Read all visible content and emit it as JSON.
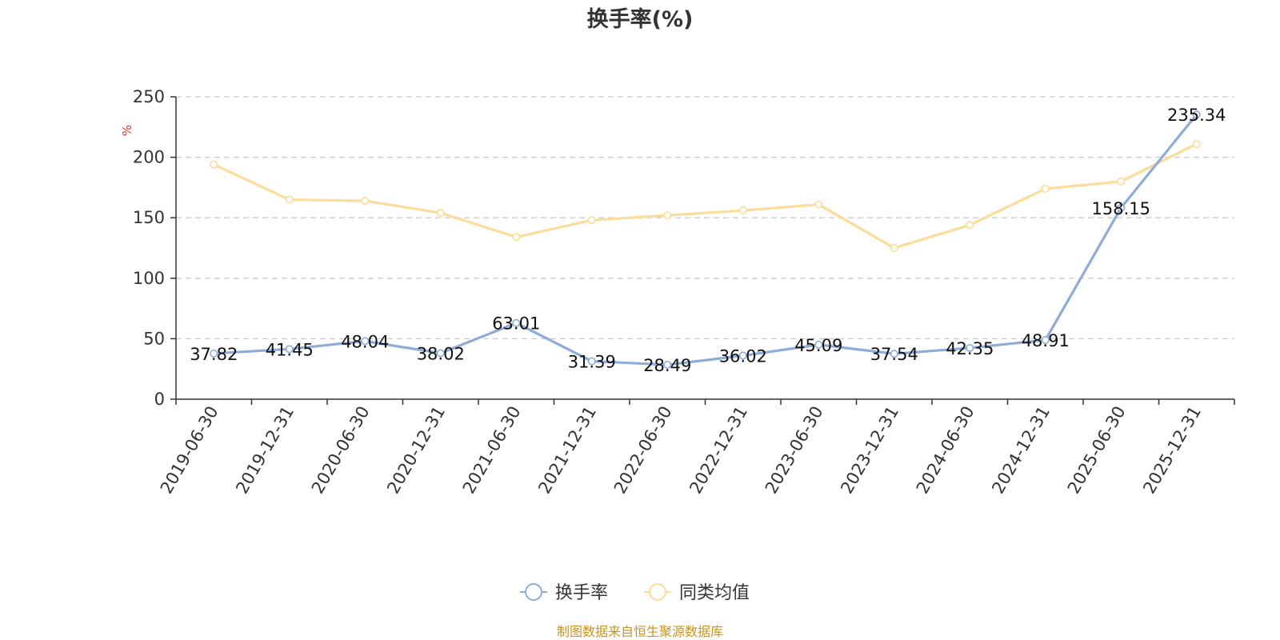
{
  "chart_data": {
    "type": "line",
    "title": "换手率(%)",
    "ylabel": "%",
    "xlabel": "",
    "ylim": [
      0,
      250
    ],
    "yticks": [
      0,
      50,
      100,
      150,
      200,
      250
    ],
    "grid": true,
    "legend_position": "bottom-center",
    "categories": [
      "2019-06-30",
      "2019-12-31",
      "2020-06-30",
      "2020-12-31",
      "2021-06-30",
      "2021-12-31",
      "2022-06-30",
      "2022-12-31",
      "2023-06-30",
      "2023-12-31",
      "2024-06-30",
      "2024-12-31",
      "2025-06-30",
      "2025-12-31"
    ],
    "series": [
      {
        "name": "换手率",
        "color": "#8eacd8",
        "values": [
          37.82,
          41.45,
          48.04,
          38.02,
          63.01,
          31.39,
          28.49,
          36.02,
          45.09,
          37.54,
          42.35,
          48.91,
          158.15,
          235.34
        ],
        "labels": [
          "37.82",
          "41.45",
          "48.04",
          "38.02",
          "63.01",
          "31.39",
          "28.49",
          "36.02",
          "45.09",
          "37.54",
          "42.35",
          "48.91",
          "158.15",
          "235.34"
        ]
      },
      {
        "name": "同类均值",
        "color": "#fddc9a",
        "values": [
          194,
          165,
          164,
          154,
          134,
          148,
          152,
          156,
          161,
          125,
          144,
          174,
          180,
          211
        ]
      }
    ]
  },
  "source_note": "制图数据来自恒生聚源数据库",
  "colors": {
    "unit": "#e03030",
    "source": "#c8941e"
  }
}
